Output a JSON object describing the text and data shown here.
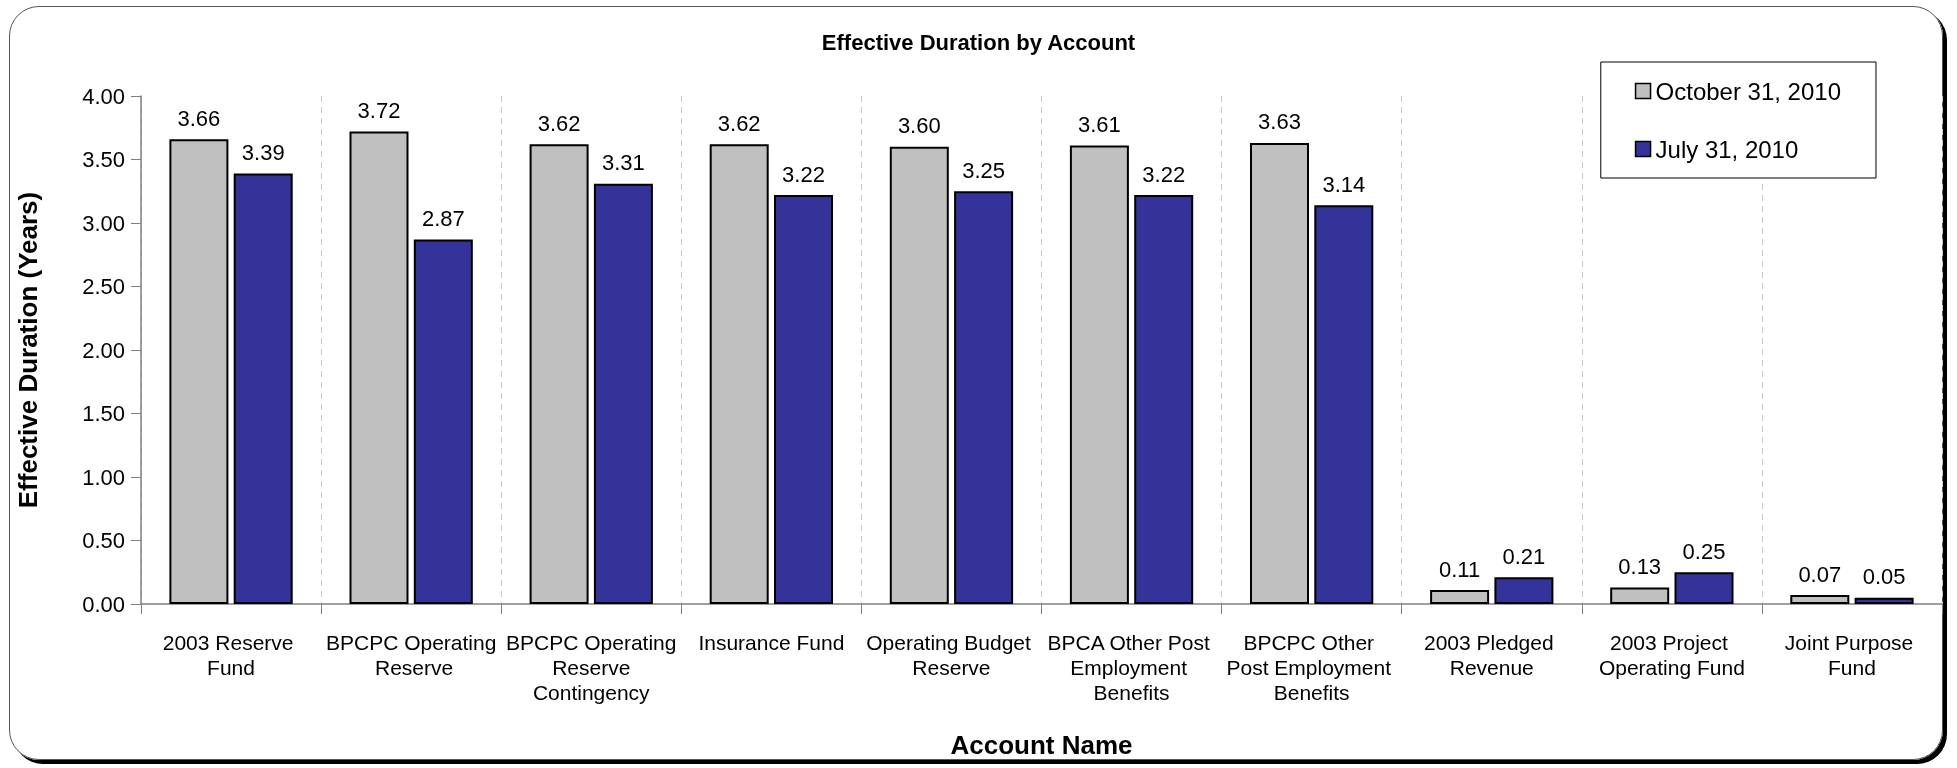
{
  "chart_data": {
    "type": "bar",
    "title": "Effective Duration by Account",
    "xlabel": "Account Name",
    "ylabel": "Effective Duration (Years)",
    "categories": [
      "2003 Reserve Fund",
      "BPCPC Operating Reserve",
      "BPCPC Operating Reserve Contingency",
      "Insurance Fund",
      "Operating Budget Reserve",
      "BPCA Other Post Employment Benefits",
      "BPCPC Other Post Employment Benefits",
      "2003 Pledged Revenue",
      "2003 Project Operating Fund",
      "Joint Purpose Fund"
    ],
    "series": [
      {
        "name": "October 31, 2010",
        "color": "#c0c0c0",
        "values": [
          3.66,
          3.72,
          3.62,
          3.62,
          3.6,
          3.61,
          3.63,
          0.11,
          0.13,
          0.07
        ],
        "value_labels": [
          "3.66",
          "3.72",
          "3.62",
          "3.62",
          "3.60",
          "3.61",
          "3.63",
          "0.11",
          "0.13",
          "0.07"
        ]
      },
      {
        "name": "July 31, 2010",
        "color": "#333399",
        "values": [
          3.39,
          2.87,
          3.31,
          3.22,
          3.25,
          3.22,
          3.14,
          0.21,
          0.25,
          0.05
        ],
        "value_labels": [
          "3.39",
          "2.87",
          "3.31",
          "3.22",
          "3.25",
          "3.22",
          "3.14",
          "0.21",
          "0.25",
          "0.05"
        ]
      }
    ],
    "ylim": [
      0,
      4
    ],
    "yticks": [
      {
        "value": 0,
        "label": "0.00"
      },
      {
        "value": 0.5,
        "label": "0.50"
      },
      {
        "value": 1,
        "label": "1.00"
      },
      {
        "value": 1.5,
        "label": "1.50"
      },
      {
        "value": 2,
        "label": "2.00"
      },
      {
        "value": 2.5,
        "label": "2.50"
      },
      {
        "value": 3,
        "label": "3.00"
      },
      {
        "value": 3.5,
        "label": "3.50"
      },
      {
        "value": 4,
        "label": "4.00"
      }
    ],
    "grid": "x",
    "legend": "top right"
  }
}
